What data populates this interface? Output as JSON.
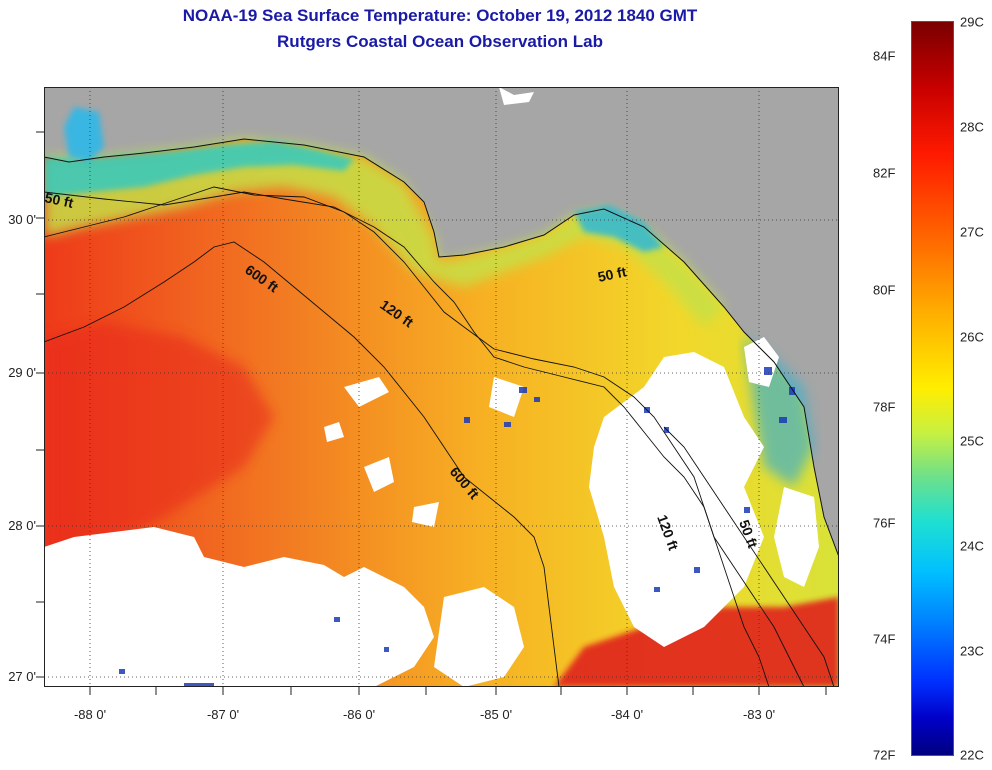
{
  "title": "NOAA-19 Sea Surface Temperature:  October 19, 2012 1840 GMT",
  "subtitle": "Rutgers Coastal Ocean Observation Lab",
  "lat_labels": [
    {
      "text": "30 0'",
      "value": 30.0
    },
    {
      "text": "29 0'",
      "value": 29.0
    },
    {
      "text": "28 0'",
      "value": 28.0
    },
    {
      "text": "27 0'",
      "value": 27.0
    }
  ],
  "lon_labels": [
    {
      "text": "-88 0'",
      "value": -88.0
    },
    {
      "text": "-87 0'",
      "value": -87.0
    },
    {
      "text": "-86 0'",
      "value": -86.0
    },
    {
      "text": "-85 0'",
      "value": -85.0
    },
    {
      "text": "-84 0'",
      "value": -84.0
    },
    {
      "text": "-83 0'",
      "value": -83.0
    }
  ],
  "contour_labels": [
    {
      "text": "50 ft",
      "depth": 50
    },
    {
      "text": "600 ft",
      "depth": 600
    },
    {
      "text": "120 ft",
      "depth": 120
    },
    {
      "text": "50 ft",
      "depth": 50
    },
    {
      "text": "600 ft",
      "depth": 600
    },
    {
      "text": "120 ft",
      "depth": 120
    },
    {
      "text": "50 ft",
      "depth": 50
    }
  ],
  "colorbar": {
    "fahrenheit": [
      "84F",
      "82F",
      "80F",
      "78F",
      "76F",
      "74F",
      "72F"
    ],
    "celsius": [
      "29C",
      "28C",
      "27C",
      "26C",
      "25C",
      "24C",
      "23C",
      "22C"
    ],
    "min_c": 22,
    "max_c": 29
  },
  "colors": {
    "land": "#a6a6a6",
    "cloud": "#ffffff",
    "title": "#1a1aa6"
  }
}
